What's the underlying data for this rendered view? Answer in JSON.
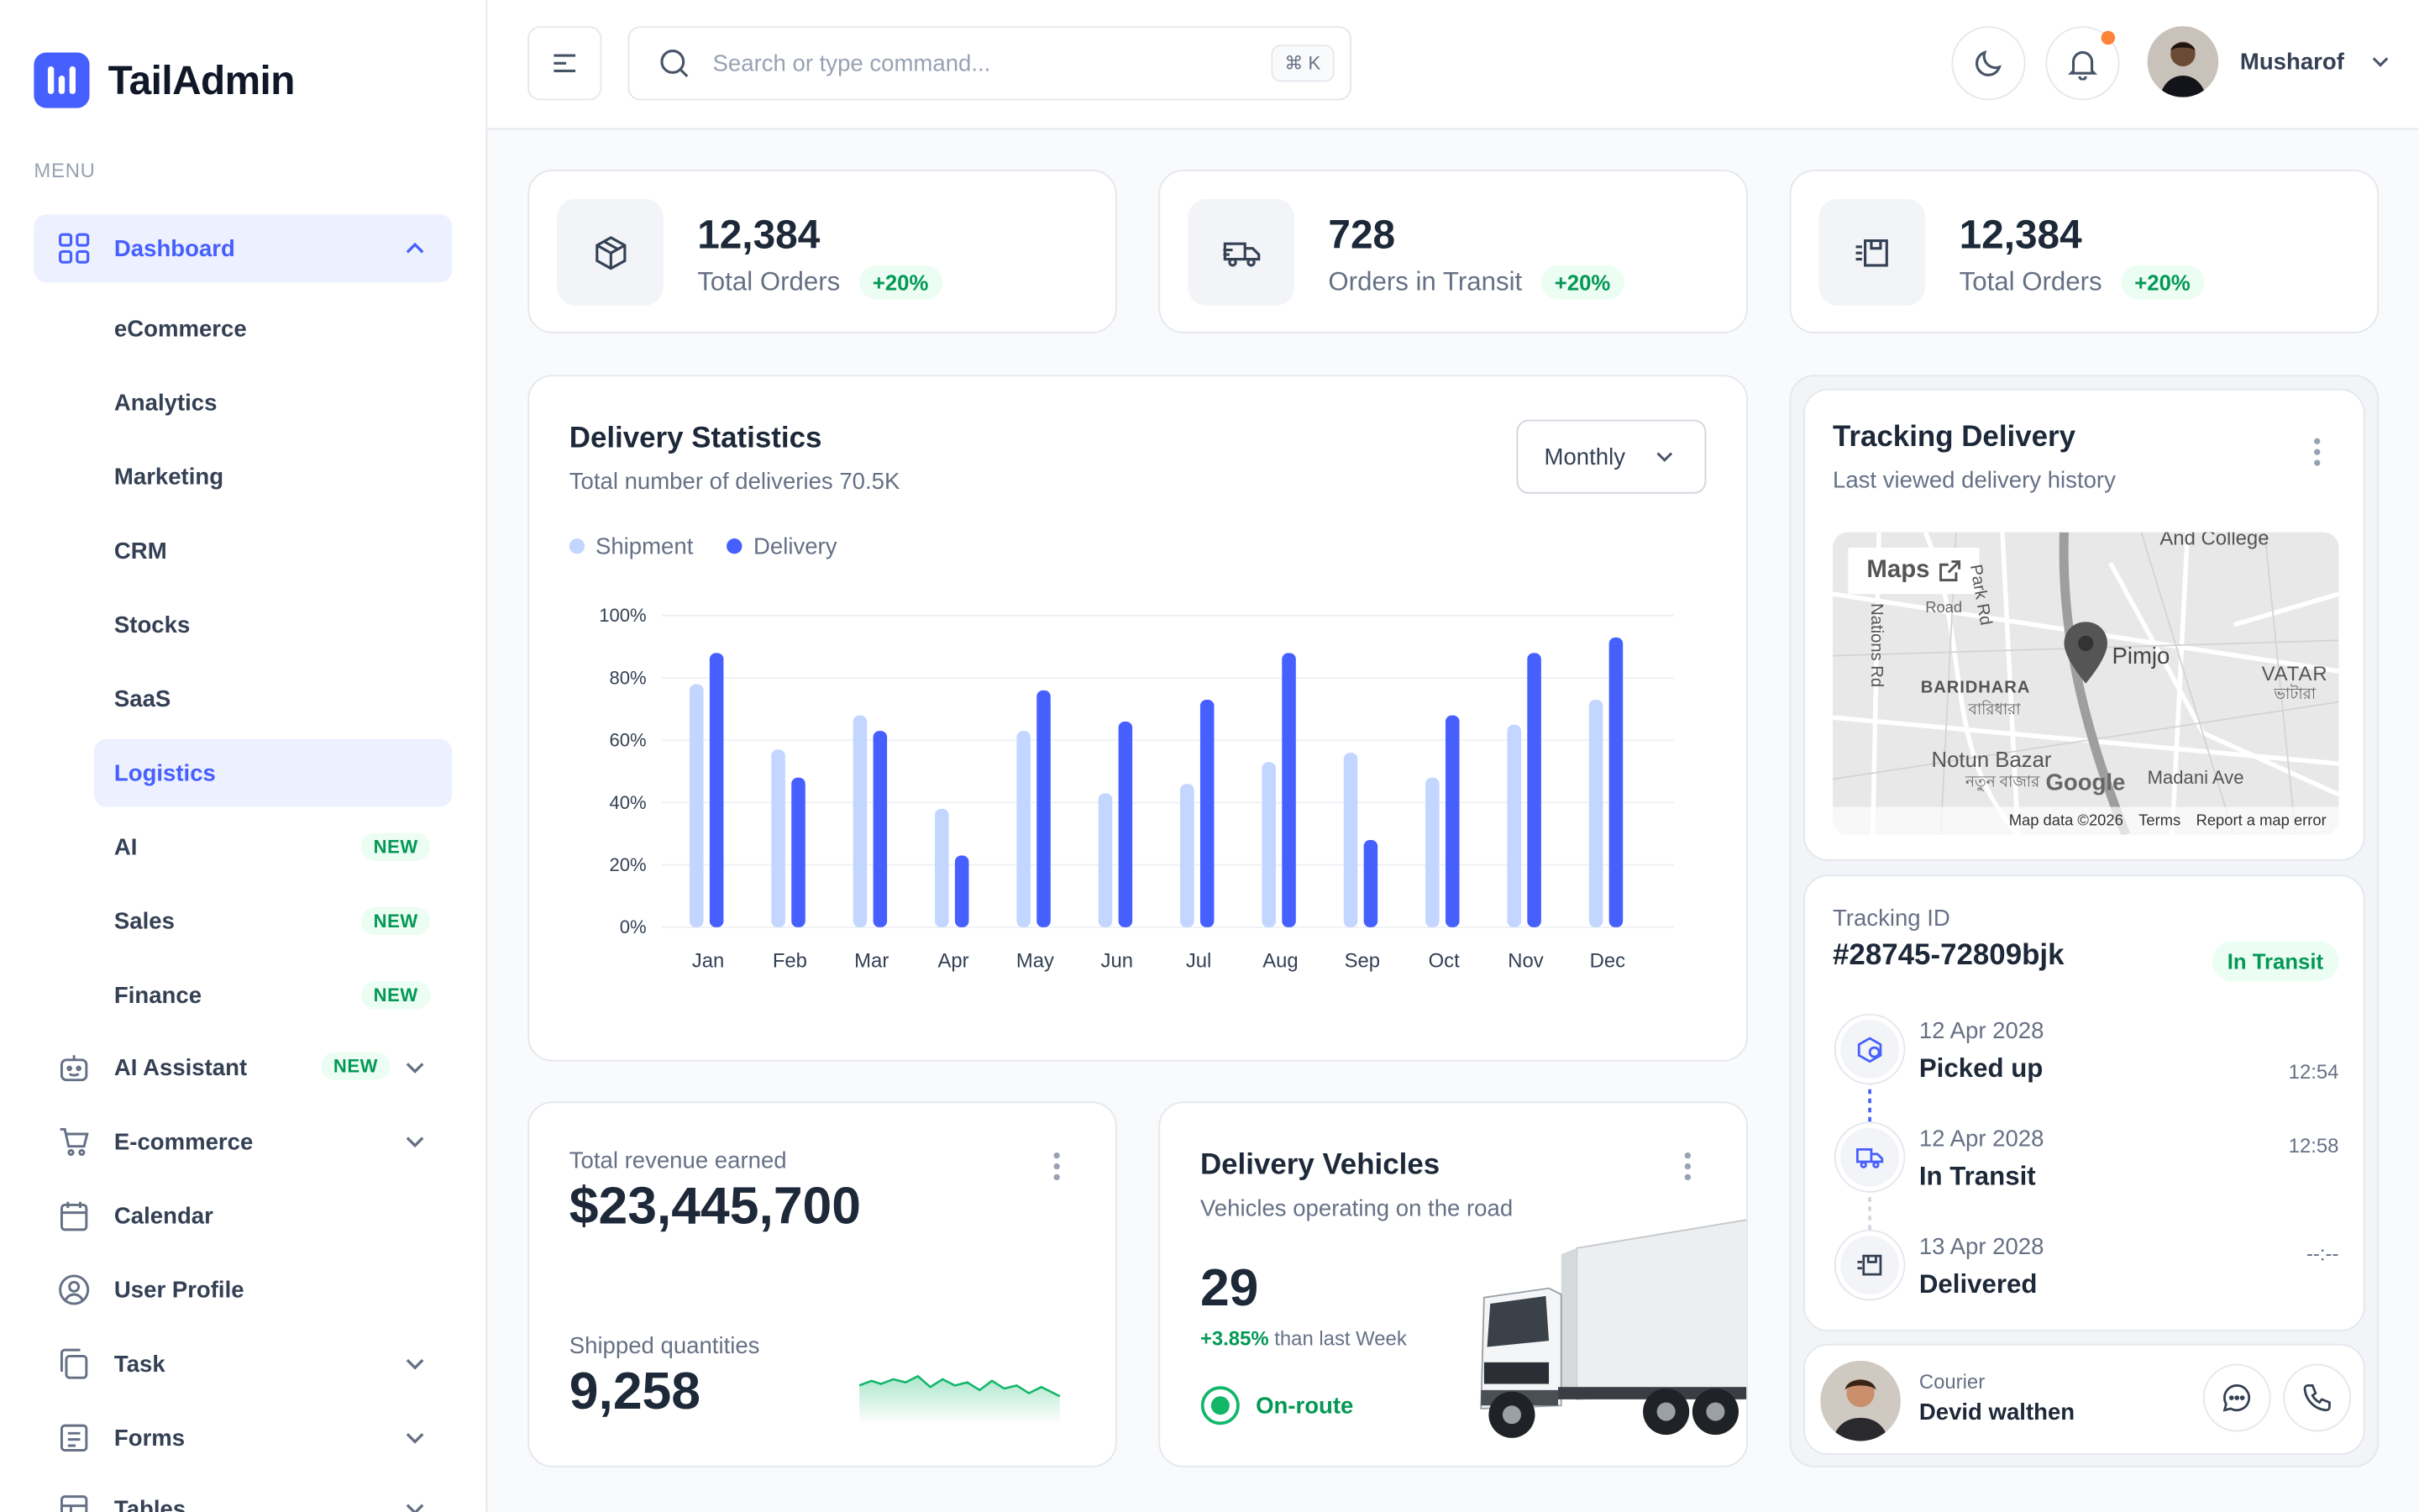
{
  "brand": {
    "name": "TailAdmin"
  },
  "sidebar": {
    "menu_title": "MENU",
    "dashboard": {
      "label": "Dashboard"
    },
    "sub_items": [
      {
        "label": "eCommerce"
      },
      {
        "label": "Analytics"
      },
      {
        "label": "Marketing"
      },
      {
        "label": "CRM"
      },
      {
        "label": "Stocks"
      },
      {
        "label": "SaaS"
      },
      {
        "label": "Logistics",
        "active": true
      },
      {
        "label": "AI",
        "badge": "NEW"
      },
      {
        "label": "Sales",
        "badge": "NEW"
      },
      {
        "label": "Finance",
        "badge": "NEW"
      }
    ],
    "items": [
      {
        "label": "AI Assistant",
        "badge": "NEW",
        "icon": "robot-icon"
      },
      {
        "label": "E-commerce",
        "icon": "cart-icon"
      },
      {
        "label": "Calendar",
        "icon": "calendar-icon"
      },
      {
        "label": "User Profile",
        "icon": "user-circle-icon"
      },
      {
        "label": "Task",
        "icon": "task-icon"
      },
      {
        "label": "Forms",
        "icon": "form-icon"
      },
      {
        "label": "Tables",
        "icon": "table-icon"
      }
    ]
  },
  "header": {
    "search_placeholder": "Search or type command...",
    "shortcut": "⌘ K",
    "user_name": "Musharof"
  },
  "stats": [
    {
      "value": "12,384",
      "label": "Total Orders",
      "change": "+20%",
      "icon": "box-icon"
    },
    {
      "value": "728",
      "label": "Orders in Transit",
      "change": "+20%",
      "icon": "truck-icon"
    },
    {
      "value": "12,384",
      "label": "Total Orders",
      "change": "+20%",
      "icon": "package-icon"
    }
  ],
  "delivery_stats": {
    "title": "Delivery Statistics",
    "subtitle": "Total number of deliveries 70.5K",
    "period": "Monthly"
  },
  "chart_data": {
    "type": "bar",
    "categories": [
      "Jan",
      "Feb",
      "Mar",
      "Apr",
      "May",
      "Jun",
      "Jul",
      "Aug",
      "Sep",
      "Oct",
      "Nov",
      "Dec"
    ],
    "series": [
      {
        "name": "Shipment",
        "color": "#c2d6ff",
        "values": [
          78,
          57,
          68,
          38,
          63,
          43,
          46,
          53,
          56,
          48,
          65,
          73
        ]
      },
      {
        "name": "Delivery",
        "color": "#465fff",
        "values": [
          88,
          48,
          63,
          23,
          76,
          66,
          73,
          88,
          28,
          68,
          88,
          93
        ]
      }
    ],
    "yticks": [
      "100%",
      "80%",
      "60%",
      "40%",
      "20%",
      "0%"
    ],
    "ylim": [
      0,
      100
    ],
    "grid": true,
    "legend": "top-left"
  },
  "revenue": {
    "label": "Total revenue earned",
    "value": "$23,445,700",
    "shipped_label": "Shipped quantities",
    "shipped_value": "9,258"
  },
  "vehicles": {
    "title": "Delivery Vehicles",
    "subtitle": "Vehicles operating on the road",
    "count": "29",
    "change": "+3.85%",
    "change_suffix": "than last Week",
    "status": "On-route"
  },
  "tracking": {
    "title": "Tracking Delivery",
    "subtitle": "Last viewed delivery history",
    "map": {
      "maps_label": "Maps",
      "pin_label": "Pimjo",
      "places": [
        "BARIDHARA",
        "বারিধারা",
        "Notun Bazar",
        "নতুন বাজার",
        "Park Rd",
        "Nations Rd",
        "VATAR",
        "ভাটারা",
        "And College",
        "Madani Ave",
        "Road"
      ],
      "footer": [
        "Map data ©2026",
        "Terms",
        "Report a map error"
      ],
      "google": "Google"
    },
    "id_label": "Tracking ID",
    "id_value": "#28745-72809bjk",
    "status": "In Transit",
    "timeline": [
      {
        "date": "12 Apr 2028",
        "label": "Picked up",
        "time": "12:54",
        "icon": "box-pickup-icon"
      },
      {
        "date": "12 Apr 2028",
        "label": "In Transit",
        "time": "12:58",
        "icon": "truck-icon"
      },
      {
        "date": "13 Apr 2028",
        "label": "Delivered",
        "time": "--:--",
        "icon": "package-icon"
      }
    ],
    "courier_label": "Courier",
    "courier_name": "Devid walthen"
  }
}
